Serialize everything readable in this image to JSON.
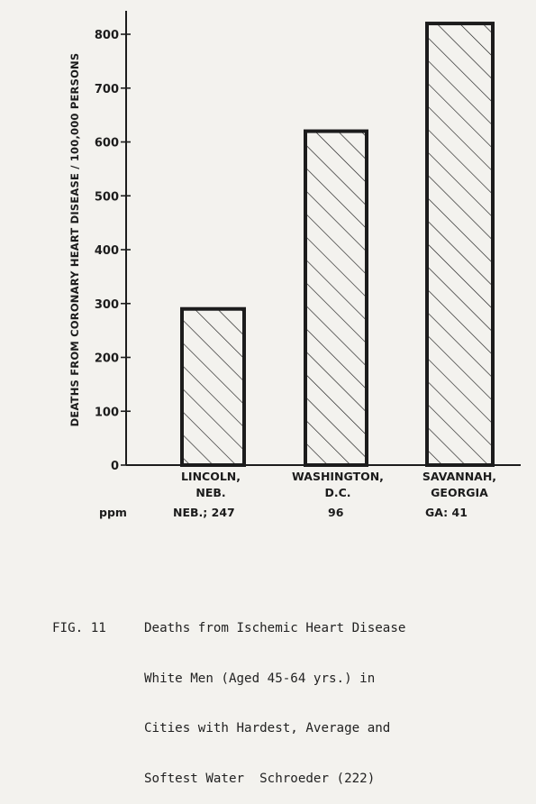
{
  "chart_data": {
    "type": "bar",
    "ylabel": "DEATHS FROM CORONARY HEART DISEASE / 100,000 PERSONS",
    "ylim": [
      0,
      850
    ],
    "yticks": [
      0,
      100,
      200,
      300,
      400,
      500,
      600,
      700,
      800
    ],
    "ytick_labels": [
      "0",
      "100",
      "200",
      "300",
      "400",
      "500",
      "600",
      "700",
      "800"
    ],
    "categories": [
      {
        "line1": "LINCOLN,",
        "line2": "NEB."
      },
      {
        "line1": "WASHINGTON,",
        "line2": "D.C."
      },
      {
        "line1": "SAVANNAH,",
        "line2": "GEORGIA"
      }
    ],
    "values": [
      290,
      620,
      820
    ],
    "hatch": "diagonal",
    "grid": false,
    "ppm": {
      "label": "ppm",
      "values": [
        "NEB.; 247",
        "96",
        "GA: 41"
      ]
    }
  },
  "caption": {
    "label": "FIG. 11",
    "lines": [
      "Deaths from Ischemic Heart Disease",
      "White Men (Aged 45-64 yrs.) in",
      "Cities with Hardest, Average and",
      "Softest Water  Schroeder (222)"
    ]
  },
  "colors": {
    "ink": "#1c1c1c",
    "paper": "#f3f2ee"
  }
}
